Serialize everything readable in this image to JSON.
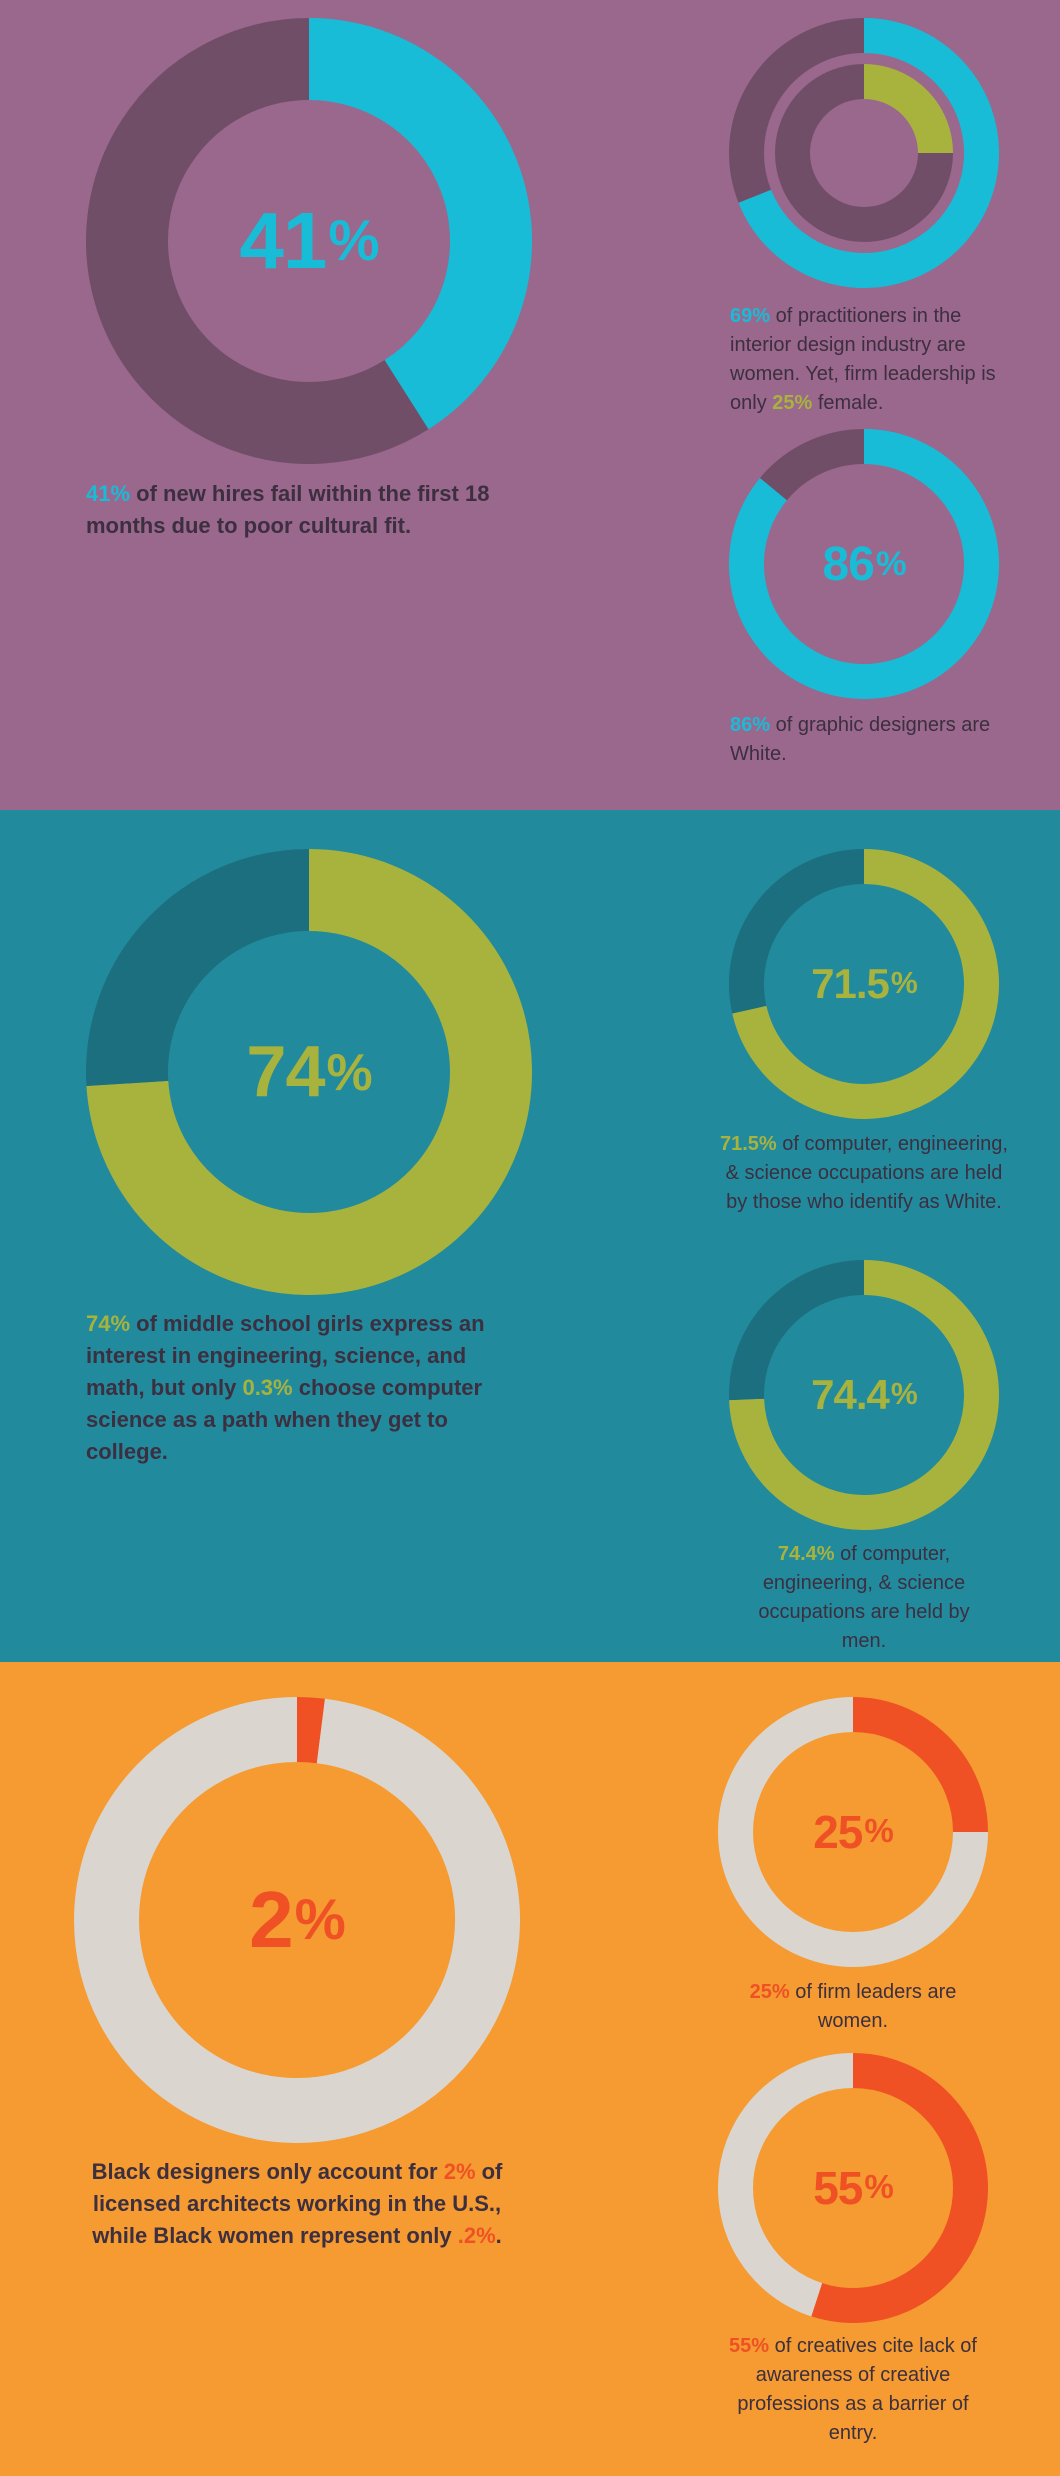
{
  "colors": {
    "purple_bg": "#9a678d",
    "purple_track": "#714e68",
    "cyan": "#18bcd6",
    "lime": "#a8b33e",
    "teal_bg": "#228a9d",
    "teal_track": "#1c6f7e",
    "orange_bg": "#f59b31",
    "light_track": "#dbd5d0",
    "red_orange": "#ef5125",
    "caption_text": "#3c2f3f"
  },
  "sections": {
    "purple": {
      "big": {
        "number": "41",
        "pct_sign": "%",
        "caption_hl": "41%",
        "caption_rest": " of new hires fail within the first 18 months due to poor cultural fit."
      },
      "nested": {
        "caption_hl1": "69%",
        "caption_mid": " of practitioners in the interior design industry are women. Yet, firm leadership is only ",
        "caption_hl2": "25%",
        "caption_end": " female."
      },
      "small": {
        "number": "86",
        "pct_sign": "%",
        "caption_hl": "86%",
        "caption_rest": " of graphic designers are White."
      }
    },
    "teal": {
      "big": {
        "number": "74",
        "pct_sign": "%",
        "caption_hl1": "74%",
        "caption_mid": " of middle school girls express an interest in engineering, science, and math, but only ",
        "caption_hl2": "0.3%",
        "caption_end": " choose computer science as a path when they get to college."
      },
      "top": {
        "number": "71.5",
        "pct_sign": "%",
        "caption_hl": "71.5%",
        "caption_rest": " of computer, engineering, & science occupations are held by those who identify as White."
      },
      "bottom": {
        "number": "74.4",
        "pct_sign": "%",
        "caption_hl": "74.4%",
        "caption_rest": " of computer, engineering, & science occupations are held by men."
      }
    },
    "orange": {
      "big": {
        "number": "2",
        "pct_sign": "%",
        "caption_pre": "Black designers only account for ",
        "caption_hl1": "2%",
        "caption_mid": " of licensed architects working in the U.S., while Black women represent only ",
        "caption_hl2": ".2%",
        "caption_end": "."
      },
      "top": {
        "number": "25",
        "pct_sign": "%",
        "caption_hl": "25%",
        "caption_rest": " of firm leaders are women."
      },
      "bottom": {
        "number": "55",
        "pct_sign": "%",
        "caption_hl": "55%",
        "caption_rest": " of creatives cite lack of awareness of creative professions as a barrier of entry."
      }
    }
  },
  "chart_data": [
    {
      "type": "pie",
      "variant": "donut",
      "values": [
        41,
        59
      ]
    },
    {
      "type": "pie",
      "variant": "nested-donut",
      "series": [
        {
          "values": [
            69,
            31
          ]
        },
        {
          "values": [
            25,
            75
          ]
        }
      ]
    },
    {
      "type": "pie",
      "variant": "donut",
      "values": [
        86,
        14
      ]
    },
    {
      "type": "pie",
      "variant": "donut",
      "values": [
        74,
        26
      ]
    },
    {
      "type": "pie",
      "variant": "donut",
      "values": [
        71.5,
        28.5
      ]
    },
    {
      "type": "pie",
      "variant": "donut",
      "values": [
        74.4,
        25.6
      ]
    },
    {
      "type": "pie",
      "variant": "donut",
      "values": [
        2,
        98
      ]
    },
    {
      "type": "pie",
      "variant": "donut",
      "values": [
        25,
        75
      ]
    },
    {
      "type": "pie",
      "variant": "donut",
      "values": [
        55,
        45
      ]
    }
  ]
}
